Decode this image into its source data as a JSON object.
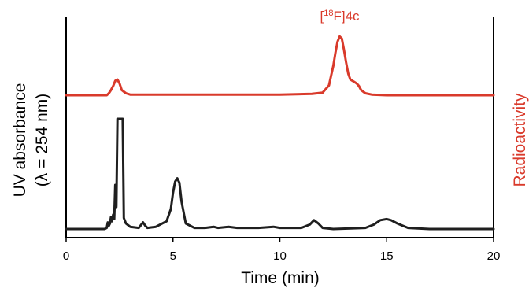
{
  "chart_data": {
    "type": "line",
    "xlabel": "Time (min)",
    "ylabel_left_line1": "UV absorbance",
    "ylabel_left_line2": "(λ = 254 nm)",
    "ylabel_right": "Radioactivity",
    "xlim": [
      0,
      20
    ],
    "x_ticks": [
      0,
      5,
      10,
      15,
      20
    ],
    "annotation": {
      "superscript": "18",
      "prefix": "[",
      "suffix": "F]4c",
      "x": 12.8
    },
    "colors": {
      "uv": "#1f1f1f",
      "radio": "#d93a2b",
      "axis": "#000000"
    },
    "series": [
      {
        "key": "radio",
        "x": [
          0,
          1.9,
          2.0,
          2.1,
          2.2,
          2.3,
          2.4,
          2.5,
          2.6,
          2.8,
          3.0,
          4,
          6,
          8,
          10,
          11.5,
          12.0,
          12.3,
          12.5,
          12.6,
          12.7,
          12.8,
          12.9,
          13.0,
          13.1,
          13.2,
          13.3,
          13.5,
          13.6,
          13.7,
          13.8,
          14.0,
          14.3,
          15,
          17,
          20
        ],
        "y": [
          0,
          0,
          0.03,
          0.08,
          0.14,
          0.22,
          0.24,
          0.18,
          0.08,
          0.03,
          0.01,
          0.01,
          0.01,
          0.01,
          0.01,
          0.02,
          0.04,
          0.15,
          0.45,
          0.65,
          0.82,
          0.9,
          0.87,
          0.7,
          0.5,
          0.33,
          0.24,
          0.2,
          0.18,
          0.14,
          0.08,
          0.03,
          0.01,
          0,
          0,
          0
        ]
      },
      {
        "key": "uv",
        "x": [
          0,
          1.8,
          1.9,
          1.95,
          2.0,
          2.05,
          2.1,
          2.15,
          2.2,
          2.25,
          2.3,
          2.35,
          2.4,
          2.45,
          2.65,
          2.7,
          2.8,
          3.0,
          3.4,
          3.6,
          3.7,
          3.8,
          4.2,
          4.7,
          4.9,
          5.0,
          5.1,
          5.2,
          5.3,
          5.4,
          5.6,
          6.0,
          6.5,
          6.9,
          7.1,
          7.6,
          8.0,
          9.0,
          9.7,
          10.0,
          11.0,
          11.4,
          11.6,
          11.8,
          12.0,
          12.5,
          14.0,
          14.4,
          14.7,
          15.0,
          15.2,
          15.5,
          16.0,
          17,
          20
        ],
        "y": [
          0,
          0,
          0.01,
          0.06,
          0.03,
          0.05,
          0.11,
          0.07,
          0.13,
          0.09,
          0.4,
          0.2,
          1.0,
          1.0,
          1.0,
          0.1,
          0.05,
          0.02,
          0.01,
          0.06,
          0.03,
          0.01,
          0.02,
          0.07,
          0.18,
          0.33,
          0.43,
          0.46,
          0.42,
          0.25,
          0.05,
          0.01,
          0.01,
          0.02,
          0.01,
          0.02,
          0.01,
          0.01,
          0.02,
          0.01,
          0.01,
          0.04,
          0.08,
          0.05,
          0.01,
          0.0,
          0.01,
          0.04,
          0.08,
          0.09,
          0.08,
          0.05,
          0.01,
          0,
          0
        ]
      }
    ]
  }
}
